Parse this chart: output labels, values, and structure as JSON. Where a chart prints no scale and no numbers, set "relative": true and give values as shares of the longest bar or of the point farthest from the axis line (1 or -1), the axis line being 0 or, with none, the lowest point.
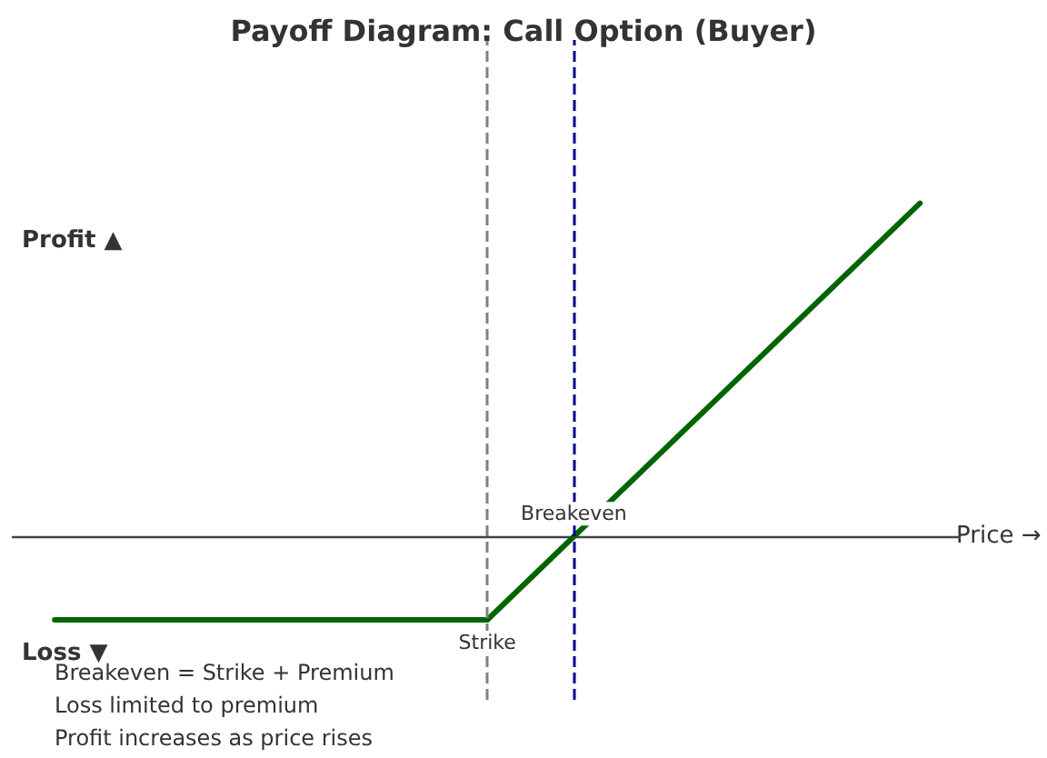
{
  "chart_data": {
    "type": "line",
    "title": "Payoff Diagram: Call Option (Buyer)",
    "xlabel": "Price →",
    "categories": [
      null,
      null,
      null
    ],
    "relative": true,
    "tick_labels": false,
    "grid": false,
    "marker": "none",
    "line_style": "solid",
    "series": [
      {
        "color": "#006400",
        "values": [
          -0.25,
          -0.25,
          1
        ]
      }
    ],
    "annotations": [
      "Profit ▲",
      "Loss ▼",
      "Breakeven = Strike + Premium",
      "Loss limited to premium",
      "Profit increases as price rises",
      "Strike",
      "Breakeven"
    ]
  }
}
